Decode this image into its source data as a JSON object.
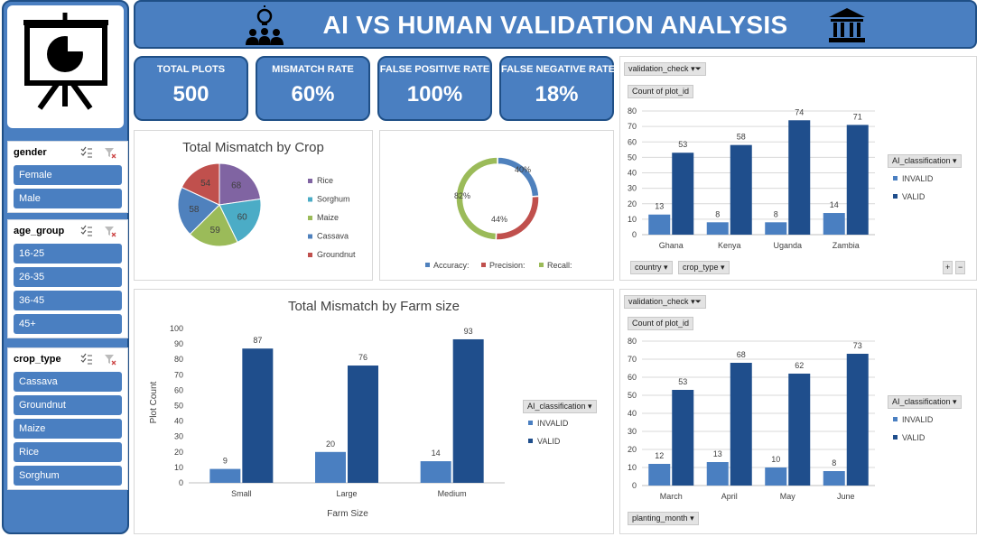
{
  "header": {
    "title": "AI VS HUMAN VALIDATION ANALYSIS"
  },
  "kpis": [
    {
      "label": "TOTAL PLOTS",
      "value": "500"
    },
    {
      "label": "MISMATCH RATE",
      "value": "60%"
    },
    {
      "label": "FALSE POSITIVE RATE",
      "value": "100%"
    },
    {
      "label": "FALSE NEGATIVE RATE",
      "value": "18%"
    }
  ],
  "slicers": [
    {
      "title": "gender",
      "items": [
        "Female",
        "Male"
      ]
    },
    {
      "title": "age_group",
      "items": [
        "16-25",
        "26-35",
        "36-45",
        "45+"
      ]
    },
    {
      "title": "crop_type",
      "items": [
        "Cassava",
        "Groundnut",
        "Maize",
        "Rice",
        "Sorghum"
      ]
    }
  ],
  "pivot": {
    "validation_check": "validation_check",
    "count_field": "Count of plot_id",
    "legend_field": "AI_classification",
    "country": "country",
    "crop_type": "crop_type",
    "planting_month": "planting_month"
  },
  "colors": {
    "invalid": "#4a7fc1",
    "valid": "#1f4e8c",
    "rice": "#8064a2",
    "sorghum": "#4bacc6",
    "maize": "#9bbb59",
    "cassava": "#4f81bd",
    "groundnut": "#c0504d",
    "accuracy": "#4f81bd",
    "precision": "#c0504d",
    "recall": "#9bbb59"
  },
  "chart_data": [
    {
      "id": "crop_pie",
      "type": "pie",
      "title": "Total Mismatch by Crop",
      "categories": [
        "Rice",
        "Sorghum",
        "Maize",
        "Cassava",
        "Groundnut"
      ],
      "values": [
        68,
        60,
        59,
        58,
        54
      ],
      "legend": "right"
    },
    {
      "id": "metrics_donut",
      "type": "pie",
      "title": "",
      "categories": [
        "Accuracy:",
        "Precision:",
        "Recall:"
      ],
      "values": [
        40,
        44,
        82
      ],
      "labels": [
        "40%",
        "44%",
        "82%"
      ],
      "legend": "bottom"
    },
    {
      "id": "country_bar",
      "type": "bar",
      "categories": [
        "Ghana",
        "Kenya",
        "Uganda",
        "Zambia"
      ],
      "series": [
        {
          "name": "INVALID",
          "values": [
            13,
            8,
            8,
            14
          ]
        },
        {
          "name": "VALID",
          "values": [
            53,
            58,
            74,
            71
          ]
        }
      ],
      "ylim": [
        0,
        80
      ],
      "ticks": [
        0,
        10,
        20,
        30,
        40,
        50,
        60,
        70,
        80
      ],
      "grid": true,
      "legend": "right"
    },
    {
      "id": "farm_bar",
      "type": "bar",
      "title": "Total Mismatch by Farm size",
      "xlabel": "Farm Size",
      "ylabel": "Plot Count",
      "categories": [
        "Small",
        "Large",
        "Medium"
      ],
      "series": [
        {
          "name": "INVALID",
          "values": [
            9,
            20,
            14
          ]
        },
        {
          "name": "VALID",
          "values": [
            87,
            76,
            93
          ]
        }
      ],
      "ylim": [
        0,
        100
      ],
      "ticks": [
        0,
        10,
        20,
        30,
        40,
        50,
        60,
        70,
        80,
        90,
        100
      ],
      "grid": false,
      "legend": "right"
    },
    {
      "id": "month_bar",
      "type": "bar",
      "categories": [
        "March",
        "April",
        "May",
        "June"
      ],
      "series": [
        {
          "name": "INVALID",
          "values": [
            12,
            13,
            10,
            8
          ]
        },
        {
          "name": "VALID",
          "values": [
            53,
            68,
            62,
            73
          ]
        }
      ],
      "ylim": [
        0,
        80
      ],
      "ticks": [
        0,
        10,
        20,
        30,
        40,
        50,
        60,
        70,
        80
      ],
      "grid": true,
      "legend": "right"
    }
  ]
}
